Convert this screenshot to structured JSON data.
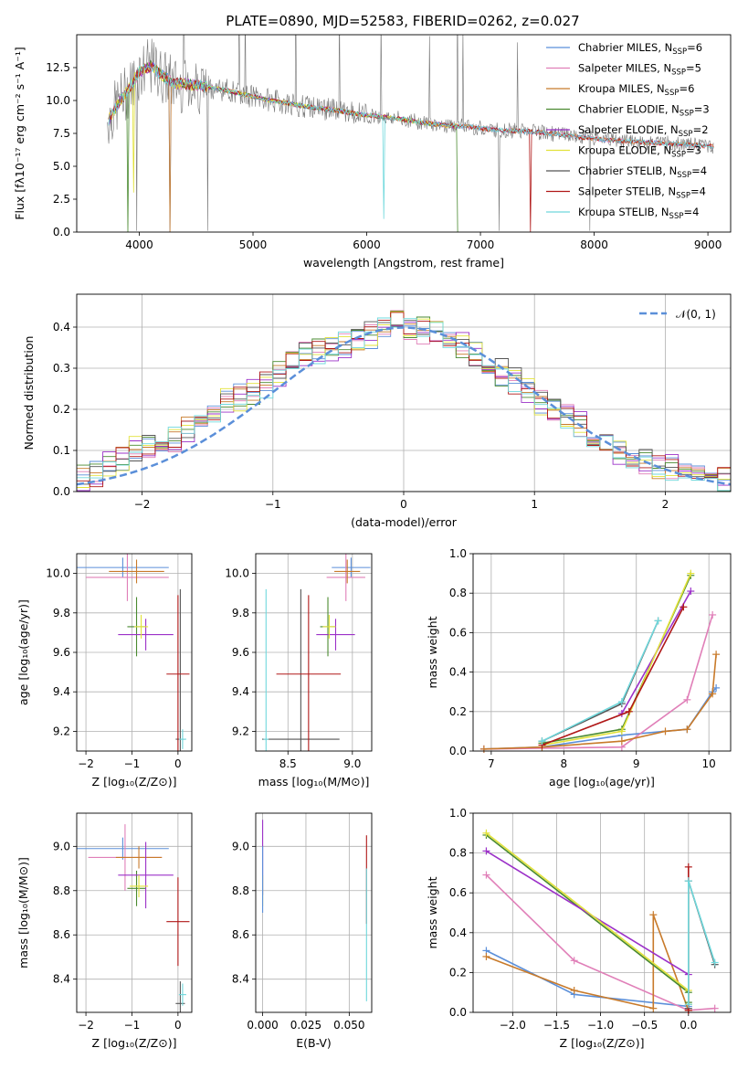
{
  "figure": {
    "title": "PLATE=0890, MJD=52583, FIBERID=0262, z=0.027"
  },
  "models": [
    {
      "name": "Chabrier MILES",
      "nssp": "6",
      "color": "#5b8fd9"
    },
    {
      "name": "Salpeter MILES",
      "nssp": "5",
      "color": "#e07fb8"
    },
    {
      "name": "Kroupa MILES",
      "nssp": "6",
      "color": "#c87a2a"
    },
    {
      "name": "Chabrier ELODIE",
      "nssp": "3",
      "color": "#4a8a30"
    },
    {
      "name": "Salpeter ELODIE",
      "nssp": "2",
      "color": "#9b30c8"
    },
    {
      "name": "Kroupa ELODIE",
      "nssp": "3",
      "color": "#e2e23a"
    },
    {
      "name": "Chabrier STELIB",
      "nssp": "4",
      "color": "#555555"
    },
    {
      "name": "Salpeter STELIB",
      "nssp": "4",
      "color": "#b01818"
    },
    {
      "name": "Kroupa STELIB",
      "nssp": "4",
      "color": "#6fd8dc"
    }
  ],
  "chart_data": [
    {
      "id": "spectrum",
      "type": "line",
      "xlabel": "wavelength [Angstrom, rest frame]",
      "ylabel": "Flux [fλ10⁻¹⁷ erg cm⁻² s⁻¹ A⁻¹]",
      "xlim": [
        3450,
        9200
      ],
      "ylim": [
        0,
        15
      ],
      "xticks": [
        "4000",
        "5000",
        "6000",
        "7000",
        "8000",
        "9000"
      ],
      "yticks": [
        "0.0",
        "2.5",
        "5.0",
        "7.5",
        "10.0",
        "12.5"
      ],
      "legend": "top-right",
      "data_x": [
        3720,
        3800,
        3900,
        4000,
        4100,
        4200,
        4300,
        4500,
        4700,
        4900,
        5100,
        5300,
        5500,
        5700,
        5900,
        6100,
        6300,
        6500,
        6700,
        6900,
        7100,
        7300,
        7500,
        7700,
        7900,
        8100,
        8300,
        8500,
        8700,
        8900,
        9050
      ],
      "data_y": [
        8.4,
        9.6,
        10.8,
        12.2,
        12.6,
        11.9,
        11.3,
        11.2,
        10.9,
        10.5,
        10.1,
        9.8,
        9.5,
        9.3,
        9.0,
        8.8,
        8.6,
        8.3,
        8.1,
        8.0,
        7.8,
        7.7,
        7.6,
        7.4,
        7.2,
        7.0,
        6.9,
        6.8,
        6.7,
        6.6,
        6.5
      ]
    },
    {
      "id": "residuals",
      "type": "line",
      "xlabel": "(data-model)/error",
      "ylabel": "Normed distribution",
      "xlim": [
        -2.5,
        2.5
      ],
      "ylim": [
        0,
        0.48
      ],
      "xticks": [
        "−2",
        "−1",
        "0",
        "1",
        "2"
      ],
      "yticks": [
        "0.0",
        "0.1",
        "0.2",
        "0.3",
        "0.4"
      ],
      "legend": "top-right",
      "legend_label": "𝒩(0, 1)",
      "normal_color": "#5b8fd9",
      "bin_width": 0.1,
      "bin_centers": [
        -2.45,
        -2.35,
        -2.25,
        -2.15,
        -2.05,
        -1.95,
        -1.85,
        -1.75,
        -1.65,
        -1.55,
        -1.45,
        -1.35,
        -1.25,
        -1.15,
        -1.05,
        -0.95,
        -0.85,
        -0.75,
        -0.65,
        -0.55,
        -0.45,
        -0.35,
        -0.25,
        -0.15,
        -0.05,
        0.05,
        0.15,
        0.25,
        0.35,
        0.45,
        0.55,
        0.65,
        0.75,
        0.85,
        0.95,
        1.05,
        1.15,
        1.25,
        1.35,
        1.45,
        1.55,
        1.65,
        1.75,
        1.85,
        1.95,
        2.05,
        2.15,
        2.25,
        2.35,
        2.45
      ],
      "hist_values": [
        0.03,
        0.045,
        0.065,
        0.08,
        0.1,
        0.11,
        0.12,
        0.13,
        0.15,
        0.17,
        0.2,
        0.22,
        0.23,
        0.24,
        0.26,
        0.29,
        0.31,
        0.33,
        0.34,
        0.35,
        0.36,
        0.37,
        0.38,
        0.39,
        0.41,
        0.4,
        0.39,
        0.38,
        0.37,
        0.36,
        0.34,
        0.32,
        0.29,
        0.27,
        0.24,
        0.22,
        0.2,
        0.18,
        0.16,
        0.14,
        0.12,
        0.1,
        0.085,
        0.075,
        0.065,
        0.055,
        0.048,
        0.04,
        0.035,
        0.03
      ]
    },
    {
      "id": "age-vs-Z",
      "type": "scatter",
      "xlabel": "Z [log₁₀(Z/Z⊙)]",
      "ylabel": "age  [log₁₀(age/yr)]",
      "xlim": [
        -2.2,
        0.3
      ],
      "ylim": [
        9.1,
        10.1
      ],
      "xticks": [
        "−2",
        "−1",
        "0"
      ],
      "yticks": [
        "9.2",
        "9.4",
        "9.6",
        "9.8",
        "10.0"
      ],
      "points": [
        {
          "model": 0,
          "x": -1.2,
          "y": 10.03,
          "xerr": 1.0,
          "yerr": 0.05
        },
        {
          "model": 1,
          "x": -1.1,
          "y": 9.98,
          "xerr": 0.9,
          "yerr": 0.12
        },
        {
          "model": 2,
          "x": -0.9,
          "y": 10.01,
          "xerr": 0.6,
          "yerr": 0.06
        },
        {
          "model": 3,
          "x": -0.9,
          "y": 9.73,
          "xerr": 0.2,
          "yerr": 0.15
        },
        {
          "model": 4,
          "x": -0.7,
          "y": 9.69,
          "xerr": 0.6,
          "yerr": 0.08
        },
        {
          "model": 5,
          "x": -0.8,
          "y": 9.73,
          "xerr": 0.15,
          "yerr": 0.06
        },
        {
          "model": 6,
          "x": 0.05,
          "y": 9.16,
          "xerr": 0.1,
          "yerr": 0.76
        },
        {
          "model": 7,
          "x": 0.0,
          "y": 9.49,
          "xerr": 0.25,
          "yerr": 0.4
        },
        {
          "model": 8,
          "x": 0.1,
          "y": 9.16,
          "xerr": 0.08,
          "yerr": 0.05
        }
      ]
    },
    {
      "id": "age-vs-mass",
      "type": "scatter",
      "xlabel": "mass [log₁₀(M/M⊙)]",
      "ylabel": "",
      "xlim": [
        8.25,
        9.15
      ],
      "ylim": [
        9.1,
        10.1
      ],
      "xticks": [
        "8.5",
        "9.0"
      ],
      "yticks": [
        "9.2",
        "9.4",
        "9.6",
        "9.8",
        "10.0"
      ],
      "points": [
        {
          "model": 0,
          "x": 8.99,
          "y": 10.03,
          "xerr": 0.15,
          "yerr": 0.05
        },
        {
          "model": 1,
          "x": 8.95,
          "y": 9.98,
          "xerr": 0.15,
          "yerr": 0.12
        },
        {
          "model": 2,
          "x": 8.96,
          "y": 10.01,
          "xerr": 0.1,
          "yerr": 0.06
        },
        {
          "model": 3,
          "x": 8.81,
          "y": 9.73,
          "xerr": 0.06,
          "yerr": 0.15
        },
        {
          "model": 4,
          "x": 8.87,
          "y": 9.69,
          "xerr": 0.15,
          "yerr": 0.08
        },
        {
          "model": 5,
          "x": 8.82,
          "y": 9.73,
          "xerr": 0.05,
          "yerr": 0.06
        },
        {
          "model": 6,
          "x": 8.6,
          "y": 9.16,
          "xerr": 0.3,
          "yerr": 0.76
        },
        {
          "model": 7,
          "x": 8.66,
          "y": 9.49,
          "xerr": 0.25,
          "yerr": 0.4
        },
        {
          "model": 8,
          "x": 8.33,
          "y": 9.16,
          "xerr": 0.02,
          "yerr": 0.76
        }
      ]
    },
    {
      "id": "massweight-vs-age",
      "type": "line",
      "xlabel": "age  [log₁₀(age/yr)]",
      "ylabel": "mass weight",
      "xlim": [
        6.75,
        10.3
      ],
      "ylim": [
        0,
        1
      ],
      "xticks": [
        "7",
        "8",
        "9",
        "10"
      ],
      "yticks": [
        "0.0",
        "0.2",
        "0.4",
        "0.6",
        "0.8",
        "1.0"
      ],
      "series": [
        {
          "model": 0,
          "x": [
            6.9,
            7.7,
            8.8,
            9.7,
            10.05,
            10.1
          ],
          "y": [
            0.01,
            0.02,
            0.08,
            0.11,
            0.3,
            0.32
          ]
        },
        {
          "model": 1,
          "x": [
            6.9,
            8.8,
            9.7,
            10.05
          ],
          "y": [
            0.01,
            0.02,
            0.26,
            0.69
          ]
        },
        {
          "model": 2,
          "x": [
            6.9,
            7.7,
            8.8,
            9.4,
            9.7,
            10.05,
            10.1
          ],
          "y": [
            0.01,
            0.02,
            0.05,
            0.1,
            0.11,
            0.29,
            0.49
          ]
        },
        {
          "model": 3,
          "x": [
            7.7,
            8.8,
            9.75
          ],
          "y": [
            0.04,
            0.11,
            0.89
          ]
        },
        {
          "model": 4,
          "x": [
            8.8,
            9.75
          ],
          "y": [
            0.19,
            0.81
          ]
        },
        {
          "model": 5,
          "x": [
            7.7,
            8.8,
            9.75
          ],
          "y": [
            0.03,
            0.1,
            0.9
          ]
        },
        {
          "model": 6,
          "x": [
            7.7,
            8.8,
            9.3
          ],
          "y": [
            0.05,
            0.24,
            0.66
          ]
        },
        {
          "model": 7,
          "x": [
            7.7,
            8.9,
            9.65
          ],
          "y": [
            0.03,
            0.2,
            0.73
          ]
        },
        {
          "model": 8,
          "x": [
            7.7,
            8.8,
            9.3
          ],
          "y": [
            0.05,
            0.25,
            0.66
          ]
        }
      ]
    },
    {
      "id": "mass-vs-Z",
      "type": "scatter",
      "xlabel": "Z [log₁₀(Z/Z⊙)]",
      "ylabel": "mass [log₁₀(M/M⊙)]",
      "xlim": [
        -2.2,
        0.3
      ],
      "ylim": [
        8.25,
        9.15
      ],
      "xticks": [
        "−2",
        "−1",
        "0"
      ],
      "yticks": [
        "8.4",
        "8.6",
        "8.8",
        "9.0"
      ],
      "points": [
        {
          "model": 0,
          "x": -1.2,
          "y": 8.99,
          "xerr": 1.0,
          "yerr": 0.05
        },
        {
          "model": 1,
          "x": -1.15,
          "y": 8.95,
          "xerr": 0.8,
          "yerr": 0.15
        },
        {
          "model": 2,
          "x": -0.85,
          "y": 8.95,
          "xerr": 0.5,
          "yerr": 0.05
        },
        {
          "model": 3,
          "x": -0.9,
          "y": 8.81,
          "xerr": 0.2,
          "yerr": 0.08
        },
        {
          "model": 4,
          "x": -0.7,
          "y": 8.87,
          "xerr": 0.6,
          "yerr": 0.15
        },
        {
          "model": 5,
          "x": -0.85,
          "y": 8.82,
          "xerr": 0.2,
          "yerr": 0.05
        },
        {
          "model": 6,
          "x": 0.05,
          "y": 8.29,
          "xerr": 0.1,
          "yerr": 0.1
        },
        {
          "model": 7,
          "x": 0.0,
          "y": 8.66,
          "xerr": 0.25,
          "yerr": 0.2
        },
        {
          "model": 8,
          "x": 0.1,
          "y": 8.33,
          "xerr": 0.08,
          "yerr": 0.05
        }
      ]
    },
    {
      "id": "mass-vs-ebv",
      "type": "scatter",
      "xlabel": "E(B-V)",
      "ylabel": "",
      "xlim": [
        -0.004,
        0.063
      ],
      "ylim": [
        8.25,
        9.15
      ],
      "xticks": [
        "0.000",
        "0.025",
        "0.050"
      ],
      "yticks": [
        "8.4",
        "8.6",
        "8.8",
        "9.0"
      ],
      "points": [
        {
          "model": 4,
          "x": 0.0,
          "y": 8.95,
          "xerr": 0,
          "yerr": 0.17
        },
        {
          "model": 5,
          "x": 0.0,
          "y": 8.8,
          "xerr": 0,
          "yerr": 0.07
        },
        {
          "model": 0,
          "x": 0.0,
          "y": 8.85,
          "xerr": 0,
          "yerr": 0.15
        },
        {
          "model": 7,
          "x": 0.06,
          "y": 8.85,
          "xerr": 0,
          "yerr": 0.2
        },
        {
          "model": 8,
          "x": 0.06,
          "y": 8.6,
          "xerr": 0,
          "yerr": 0.3
        }
      ]
    },
    {
      "id": "massweight-vs-Z",
      "type": "line",
      "xlabel": "Z [log₁₀(Z/Z⊙)]",
      "ylabel": "mass weight",
      "xlim": [
        -2.45,
        0.48
      ],
      "ylim": [
        0,
        1
      ],
      "xticks": [
        "−2.0",
        "−1.5",
        "−1.0",
        "−0.5",
        "0.0"
      ],
      "yticks": [
        "0.0",
        "0.2",
        "0.4",
        "0.6",
        "0.8",
        "1.0"
      ],
      "series": [
        {
          "model": 0,
          "x": [
            -2.3,
            -1.3,
            0.0,
            0.0
          ],
          "y": [
            0.31,
            0.09,
            0.03,
            0.01
          ]
        },
        {
          "model": 1,
          "x": [
            -2.3,
            -1.3,
            0.0,
            0.3
          ],
          "y": [
            0.69,
            0.26,
            0.01,
            0.02
          ]
        },
        {
          "model": 2,
          "x": [
            -2.3,
            -1.3,
            -0.4,
            -0.4,
            0.0
          ],
          "y": [
            0.28,
            0.11,
            0.02,
            0.49,
            0.01
          ]
        },
        {
          "model": 3,
          "x": [
            -2.3,
            0.0,
            0.0
          ],
          "y": [
            0.89,
            0.1,
            0.05
          ]
        },
        {
          "model": 4,
          "x": [
            -2.3,
            0.0
          ],
          "y": [
            0.81,
            0.19
          ]
        },
        {
          "model": 5,
          "x": [
            -2.3,
            0.0,
            0.0
          ],
          "y": [
            0.9,
            0.11,
            0.04
          ]
        },
        {
          "model": 6,
          "x": [
            0.0,
            0.0,
            0.3
          ],
          "y": [
            0.02,
            0.66,
            0.24
          ]
        },
        {
          "model": 7,
          "x": [
            0.0,
            0.0
          ],
          "y": [
            0.01,
            0.73
          ]
        },
        {
          "model": 8,
          "x": [
            0.0,
            0.0,
            0.3
          ],
          "y": [
            0.04,
            0.66,
            0.25
          ]
        }
      ]
    }
  ]
}
